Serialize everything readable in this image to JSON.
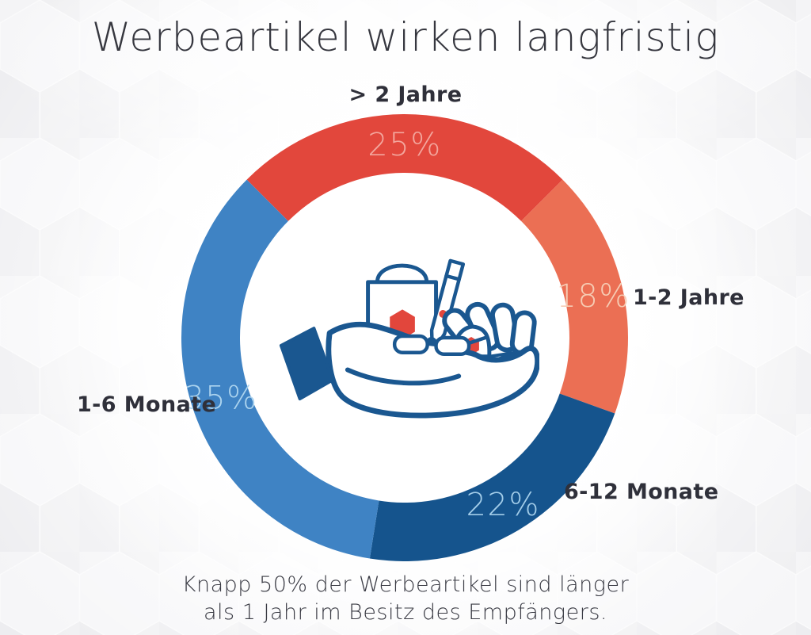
{
  "title": "Werbeartikel wirken langfristig",
  "caption": {
    "line1": "Knapp 50% der Werbeartikel sind länger",
    "line2": "als 1 Jahr im Besitz des Empfängers."
  },
  "chart_data": {
    "type": "pie",
    "variant": "donut",
    "title": "Werbeartikel wirken langfristig",
    "units": "percent",
    "start_angle_deg_from_top": -45,
    "direction": "clockwise",
    "legend_position": "around",
    "center_icon": "hand-holding-promo-items-icon",
    "segments": [
      {
        "id": "mehr-als-2-jahre",
        "label": "> 2 Jahre",
        "value": 25,
        "percent_label": "25%",
        "color": "#e2473c",
        "percent_color": "#f3a69d"
      },
      {
        "id": "1-2-jahre",
        "label": "1-2 Jahre",
        "value": 18,
        "percent_label": "18%",
        "color": "#eb6f54",
        "percent_color": "#f6ccb4"
      },
      {
        "id": "6-12-monate",
        "label": "6-12 Monate",
        "value": 22,
        "percent_label": "22%",
        "color": "#15548d",
        "percent_color": "#a3cde9"
      },
      {
        "id": "1-6-monate",
        "label": "1-6 Monate",
        "value": 35,
        "percent_label": "35%",
        "color": "#3f83c4",
        "percent_color": "#abd3ee"
      }
    ]
  },
  "colors": {
    "background": "#f1f1f3",
    "hexagon_tint_light": "#f6f6f8",
    "hexagon_tint_dark": "#ededf0",
    "text_dark": "#2f303a",
    "illustration_outline": "#1a5790",
    "illustration_accent": "#e2463c",
    "inner_circle": "#ffffff"
  },
  "icons": {
    "center_illustration": "hand-holding-promo-items-icon",
    "items": [
      "shopping-bag-icon",
      "pen-icon",
      "glasses-icon",
      "cap-icon",
      "sleeve-cuff"
    ]
  }
}
